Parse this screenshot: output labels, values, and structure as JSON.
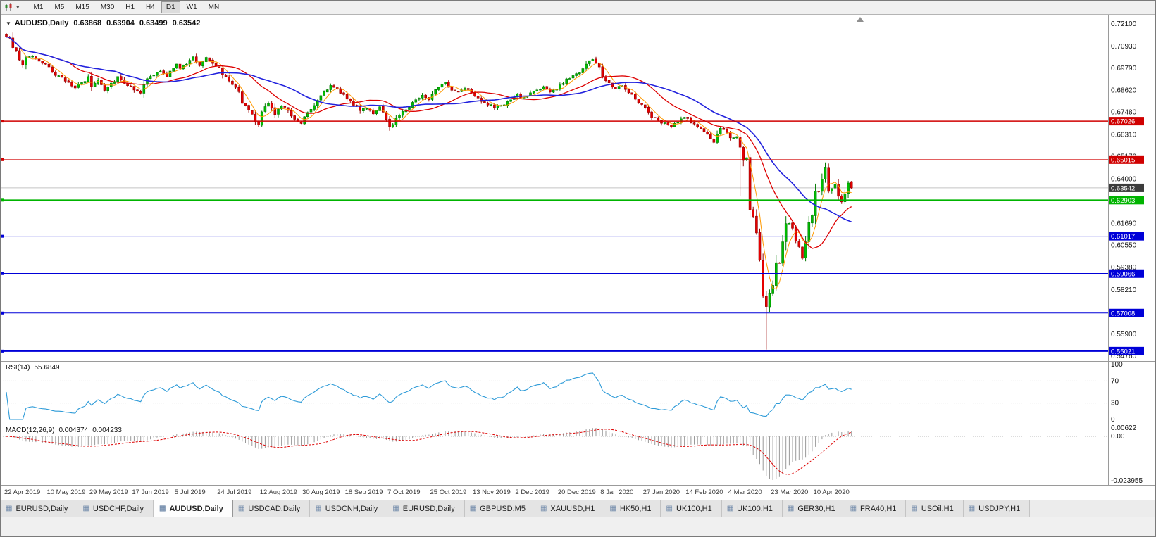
{
  "icons": {
    "chart_menu": "▼",
    "dropdown": "▾",
    "tab": "▦"
  },
  "toolbar": {
    "timeframes": [
      "M1",
      "M5",
      "M15",
      "M30",
      "H1",
      "H4",
      "D1",
      "W1",
      "MN"
    ],
    "active_timeframe": "D1"
  },
  "chart": {
    "header": {
      "symbol": "AUDUSD,Daily",
      "open": "0.63868",
      "high": "0.63904",
      "low": "0.63499",
      "close": "0.63542"
    },
    "current_price": "0.63542",
    "price_axis_labels": [
      "0.72100",
      "0.70930",
      "0.69790",
      "0.68620",
      "0.67480",
      "0.66310",
      "0.65170",
      "0.64000",
      "0.62860",
      "0.61690",
      "0.60550",
      "0.59380",
      "0.58210",
      "0.57040",
      "0.55900",
      "0.54760"
    ],
    "levels": [
      {
        "label": "0.67026",
        "price": 0.67026,
        "color": "#D00000",
        "width": 1.5
      },
      {
        "label": "0.65015",
        "price": 0.65015,
        "color": "#D00000",
        "width": 1
      },
      {
        "label": "0.62903",
        "price": 0.62903,
        "color": "#00B400",
        "width": 2
      },
      {
        "label": "0.61017",
        "price": 0.61017,
        "color": "#0000D8",
        "width": 1
      },
      {
        "label": "0.59066",
        "price": 0.59066,
        "color": "#0000D8",
        "width": 1.5
      },
      {
        "label": "0.57008",
        "price": 0.57008,
        "color": "#0000D8",
        "width": 1
      },
      {
        "label": "0.55021",
        "price": 0.55021,
        "color": "#0000D8",
        "width": 2
      }
    ],
    "date_axis_labels": [
      "22 Apr 2019",
      "10 May 2019",
      "29 May 2019",
      "17 Jun 2019",
      "5 Jul 2019",
      "24 Jul 2019",
      "12 Aug 2019",
      "30 Aug 2019",
      "18 Sep 2019",
      "7 Oct 2019",
      "25 Oct 2019",
      "13 Nov 2019",
      "2 Dec 2019",
      "20 Dec 2019",
      "8 Jan 2020",
      "27 Jan 2020",
      "14 Feb 2020",
      "4 Mar 2020",
      "23 Mar 2020",
      "10 Apr 2020"
    ]
  },
  "rsi": {
    "name": "RSI(14)",
    "value": "55.6849",
    "axis_labels": [
      "100",
      "70",
      "30",
      "0"
    ],
    "guide_levels": [
      70,
      30
    ]
  },
  "macd": {
    "name": "MACD(12,26,9)",
    "value_main": "0.004374",
    "value_signal": "0.004233",
    "axis_top": "0.00622",
    "axis_zero": "0.00",
    "axis_bottom": "-0.023955"
  },
  "tabs": {
    "items": [
      "EURUSD,Daily",
      "USDCHF,Daily",
      "AUDUSD,Daily",
      "USDCAD,Daily",
      "USDCNH,Daily",
      "EURUSD,Daily",
      "GBPUSD,M5",
      "XAUUSD,H1",
      "HK50,H1",
      "UK100,H1",
      "UK100,H1",
      "GER30,H1",
      "FRA40,H1",
      "USOil,H1",
      "USDJPY,H1"
    ],
    "active_index": 2
  },
  "colors": {
    "background": "#FFFFFF",
    "candle_up": "#00BE00",
    "candle_up_border": "#007A00",
    "candle_down": "#E60000",
    "candle_down_border": "#960000",
    "rsi_line": "#2E9BD8",
    "macd_hist": "#9A9A9A",
    "macd_signal": "#DD0000",
    "bid_line": "#C4C4C4",
    "current_price_box": "#3C3C3C"
  },
  "chart_data": {
    "type": "candlestick",
    "symbol": "AUDUSD",
    "timeframe": "Daily",
    "title": "AUDUSD,Daily",
    "candle_count": 259,
    "labels_every": 13,
    "price_axis_range": {
      "top": 0.725776,
      "bottom": 0.545
    },
    "last_candle": {
      "o": 0.63868,
      "h": 0.63904,
      "l": 0.63499,
      "c": 0.63542
    },
    "close_anchors": [
      [
        0,
        0.7135
      ],
      [
        1,
        0.715
      ],
      [
        2,
        0.71
      ],
      [
        3,
        0.706
      ],
      [
        4,
        0.702
      ],
      [
        5,
        0.7
      ],
      [
        6,
        0.7035
      ],
      [
        8,
        0.7045
      ],
      [
        10,
        0.701
      ],
      [
        12,
        0.6995
      ],
      [
        13,
        0.699
      ],
      [
        15,
        0.6945
      ],
      [
        17,
        0.6925
      ],
      [
        19,
        0.6905
      ],
      [
        21,
        0.688
      ],
      [
        23,
        0.69
      ],
      [
        25,
        0.6925
      ],
      [
        26,
        0.6885
      ],
      [
        28,
        0.692
      ],
      [
        30,
        0.687
      ],
      [
        32,
        0.69
      ],
      [
        34,
        0.6935
      ],
      [
        36,
        0.6905
      ],
      [
        38,
        0.688
      ],
      [
        39,
        0.687
      ],
      [
        41,
        0.6855
      ],
      [
        43,
        0.692
      ],
      [
        45,
        0.6945
      ],
      [
        47,
        0.6965
      ],
      [
        49,
        0.693
      ],
      [
        51,
        0.6985
      ],
      [
        52,
        0.701
      ],
      [
        53,
        0.698
      ],
      [
        55,
        0.7
      ],
      [
        57,
        0.7035
      ],
      [
        59,
        0.6995
      ],
      [
        61,
        0.704
      ],
      [
        63,
        0.701
      ],
      [
        65,
        0.6975
      ],
      [
        67,
        0.693
      ],
      [
        69,
        0.6895
      ],
      [
        71,
        0.6875
      ],
      [
        72,
        0.68
      ],
      [
        74,
        0.676
      ],
      [
        76,
        0.67
      ],
      [
        77,
        0.6678
      ],
      [
        78,
        0.6755
      ],
      [
        80,
        0.679
      ],
      [
        82,
        0.6745
      ],
      [
        84,
        0.678
      ],
      [
        86,
        0.676
      ],
      [
        88,
        0.6715
      ],
      [
        90,
        0.669
      ],
      [
        91,
        0.673
      ],
      [
        93,
        0.677
      ],
      [
        95,
        0.6815
      ],
      [
        97,
        0.686
      ],
      [
        99,
        0.6885
      ],
      [
        101,
        0.6865
      ],
      [
        103,
        0.684
      ],
      [
        104,
        0.6825
      ],
      [
        106,
        0.679
      ],
      [
        108,
        0.676
      ],
      [
        110,
        0.6775
      ],
      [
        112,
        0.6745
      ],
      [
        114,
        0.677
      ],
      [
        116,
        0.6705
      ],
      [
        117,
        0.6672
      ],
      [
        119,
        0.6715
      ],
      [
        121,
        0.6755
      ],
      [
        123,
        0.678
      ],
      [
        125,
        0.6815
      ],
      [
        127,
        0.6835
      ],
      [
        129,
        0.682
      ],
      [
        130,
        0.685
      ],
      [
        132,
        0.6885
      ],
      [
        134,
        0.69
      ],
      [
        136,
        0.6865
      ],
      [
        138,
        0.6855
      ],
      [
        140,
        0.688
      ],
      [
        142,
        0.6855
      ],
      [
        143,
        0.684
      ],
      [
        145,
        0.681
      ],
      [
        147,
        0.679
      ],
      [
        149,
        0.6775
      ],
      [
        151,
        0.6785
      ],
      [
        153,
        0.68
      ],
      [
        155,
        0.6825
      ],
      [
        156,
        0.684
      ],
      [
        158,
        0.682
      ],
      [
        160,
        0.685
      ],
      [
        162,
        0.6865
      ],
      [
        164,
        0.688
      ],
      [
        166,
        0.6855
      ],
      [
        168,
        0.687
      ],
      [
        169,
        0.6885
      ],
      [
        171,
        0.692
      ],
      [
        173,
        0.694
      ],
      [
        175,
        0.696
      ],
      [
        177,
        0.7
      ],
      [
        179,
        0.703
      ],
      [
        181,
        0.6985
      ],
      [
        182,
        0.693
      ],
      [
        184,
        0.6905
      ],
      [
        186,
        0.6875
      ],
      [
        188,
        0.6895
      ],
      [
        190,
        0.6855
      ],
      [
        192,
        0.682
      ],
      [
        194,
        0.679
      ],
      [
        195,
        0.677
      ],
      [
        197,
        0.6725
      ],
      [
        199,
        0.6705
      ],
      [
        201,
        0.669
      ],
      [
        203,
        0.6672
      ],
      [
        205,
        0.67
      ],
      [
        207,
        0.672
      ],
      [
        208,
        0.6715
      ],
      [
        210,
        0.6685
      ],
      [
        212,
        0.6662
      ],
      [
        214,
        0.663
      ],
      [
        216,
        0.6595
      ],
      [
        218,
        0.666
      ],
      [
        220,
        0.6645
      ],
      [
        221,
        0.662
      ],
      [
        222,
        0.6615
      ],
      [
        223,
        0.664
      ],
      [
        224,
        0.6583
      ],
      [
        225,
        0.6498
      ],
      [
        226,
        0.6489
      ],
      [
        227,
        0.6232
      ],
      [
        228,
        0.6183
      ],
      [
        229,
        0.6109
      ],
      [
        230,
        0.5994
      ],
      [
        231,
        0.5778
      ],
      [
        232,
        0.5744
      ],
      [
        233,
        0.5798
      ],
      [
        234,
        0.5829
      ],
      [
        235,
        0.5966
      ],
      [
        236,
        0.5955
      ],
      [
        237,
        0.6066
      ],
      [
        238,
        0.6166
      ],
      [
        239,
        0.6168
      ],
      [
        240,
        0.6136
      ],
      [
        241,
        0.607
      ],
      [
        242,
        0.6059
      ],
      [
        243,
        0.5998
      ],
      [
        244,
        0.6087
      ],
      [
        245,
        0.6163
      ],
      [
        246,
        0.6232
      ],
      [
        247,
        0.6336
      ],
      [
        248,
        0.6345
      ],
      [
        249,
        0.638
      ],
      [
        250,
        0.6445
      ],
      [
        251,
        0.6325
      ],
      [
        252,
        0.6355
      ],
      [
        253,
        0.6365
      ],
      [
        254,
        0.633
      ],
      [
        255,
        0.6265
      ],
      [
        256,
        0.632
      ],
      [
        257,
        0.6375
      ],
      [
        258,
        0.6354
      ]
    ],
    "wick_overrides": [
      {
        "index": 2,
        "high": 0.7165
      },
      {
        "index": 224,
        "low": 0.6313
      },
      {
        "index": 232,
        "low": 0.551
      }
    ],
    "moving_averages": [
      {
        "period": 5,
        "color": "#FF9900",
        "width": 1
      },
      {
        "period": 20,
        "color": "#DD0000",
        "width": 1.3
      },
      {
        "period": 34,
        "color": "#2222DD",
        "width": 1.6
      }
    ],
    "indicators": {
      "rsi": {
        "period": 14,
        "current": 55.6849
      },
      "macd": {
        "fast": 12,
        "slow": 26,
        "signal": 9,
        "current_main": 0.004374,
        "current_signal": 0.004233
      }
    }
  }
}
